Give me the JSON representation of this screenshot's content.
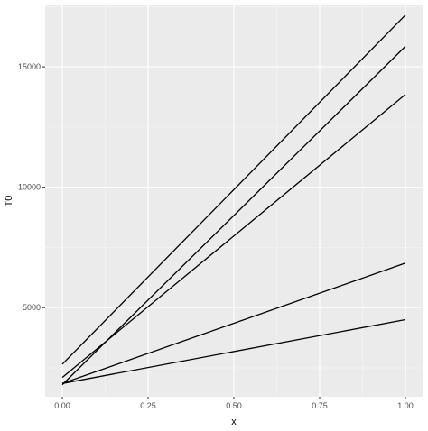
{
  "chart_data": {
    "type": "line",
    "xlabel": "x",
    "ylabel": "T0",
    "xlim": [
      -0.05,
      1.05
    ],
    "ylim": [
      1300,
      17550
    ],
    "x_ticks": [
      0.0,
      0.25,
      0.5,
      0.75,
      1.0
    ],
    "x_tick_labels": [
      "0.00",
      "0.25",
      "0.50",
      "0.75",
      "1.00"
    ],
    "y_ticks": [
      5000,
      10000,
      15000
    ],
    "y_tick_labels": [
      "5000",
      "10000",
      "15000"
    ],
    "grid": true,
    "legend": "none",
    "colors": {
      "panel": "#ebebeb",
      "grid_major": "#ffffff",
      "grid_minor": "#f5f5f5",
      "line": "#000000",
      "tick_label": "#4d4d4d"
    },
    "series": [
      {
        "x": [
          0,
          1
        ],
        "y": [
          2650,
          17150
        ]
      },
      {
        "x": [
          0,
          1
        ],
        "y": [
          1800,
          15850
        ]
      },
      {
        "x": [
          0,
          1
        ],
        "y": [
          2100,
          13850
        ]
      },
      {
        "x": [
          0,
          1
        ],
        "y": [
          1850,
          6850
        ]
      },
      {
        "x": [
          0,
          1
        ],
        "y": [
          1850,
          4500
        ]
      }
    ]
  }
}
